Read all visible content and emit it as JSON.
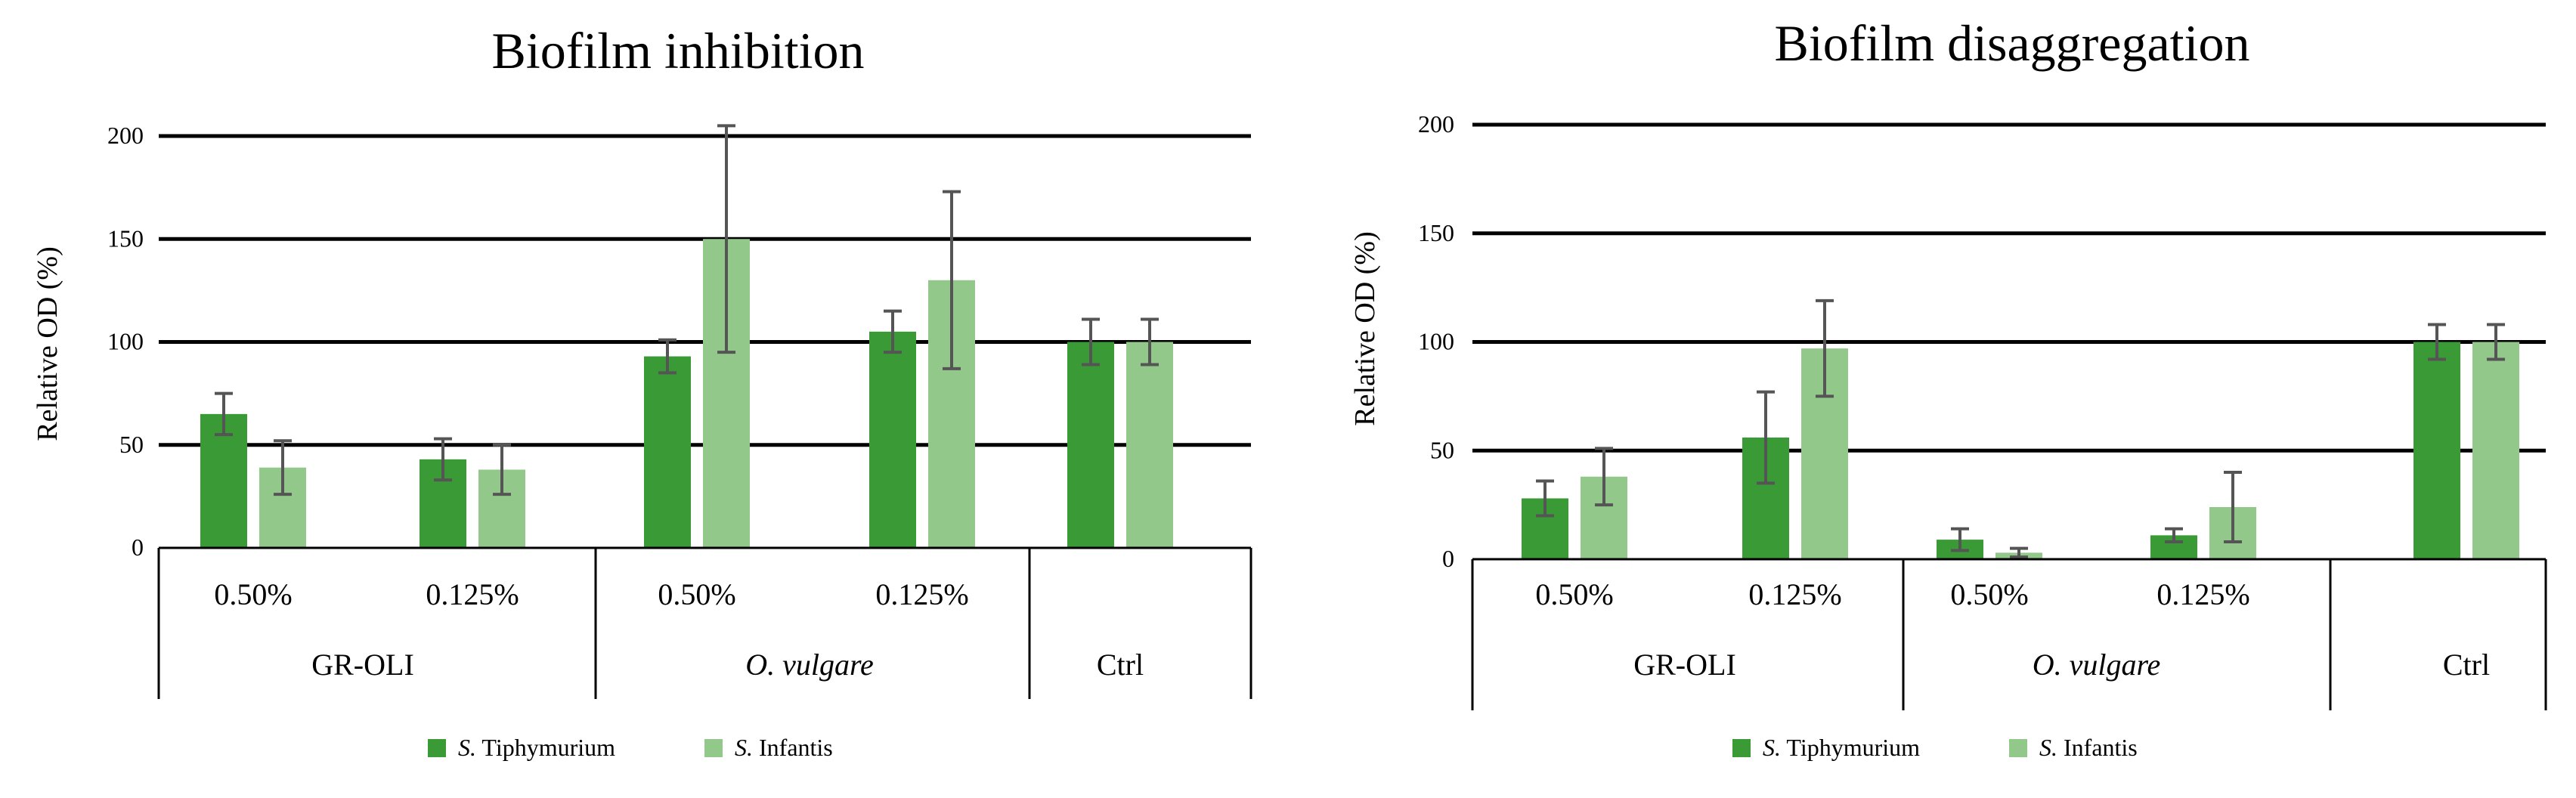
{
  "colors": {
    "dark_green": "#3a9a36",
    "light_green": "#92c98a",
    "error_bar": "#555555"
  },
  "legend": [
    {
      "italic": "S.",
      "rest": " Tiphymurium"
    },
    {
      "italic": "S.",
      "rest": " Infantis"
    }
  ],
  "chart_data": [
    {
      "type": "bar",
      "title": "Biofilm inhibition",
      "xlabel": "",
      "ylabel": "Relative OD (%)",
      "ylim": [
        0,
        200
      ],
      "yticks": [
        "0",
        "50",
        "100",
        "150",
        "200"
      ],
      "categories": [
        "0.50%",
        "0.125%",
        "0.50%",
        "0.125%",
        ""
      ],
      "groups": [
        {
          "label": "GR-OLI",
          "italic": false,
          "span": [
            0,
            1
          ]
        },
        {
          "label": "O. vulgare",
          "italic": true,
          "span": [
            2,
            3
          ]
        },
        {
          "label": "Ctrl",
          "italic": false,
          "span": [
            4,
            4
          ]
        }
      ],
      "series": [
        {
          "name": "S. Tiphymurium",
          "values": [
            65,
            43,
            93,
            105,
            100
          ],
          "errors": [
            10,
            10,
            8,
            10,
            11
          ]
        },
        {
          "name": "S. Infantis",
          "values": [
            39,
            38,
            150,
            130,
            100
          ],
          "errors": [
            13,
            12,
            55,
            43,
            11
          ]
        }
      ]
    },
    {
      "type": "bar",
      "title": "Biofilm disaggregation",
      "xlabel": "",
      "ylabel": "Relative OD (%)",
      "ylim": [
        0,
        200
      ],
      "yticks": [
        "0",
        "50",
        "100",
        "150",
        "200"
      ],
      "categories": [
        "0.50%",
        "0.125%",
        "0.50%",
        "0.125%",
        ""
      ],
      "groups": [
        {
          "label": "GR-OLI",
          "italic": false,
          "span": [
            0,
            1
          ]
        },
        {
          "label": "O. vulgare",
          "italic": true,
          "span": [
            2,
            3
          ]
        },
        {
          "label": "Ctrl",
          "italic": false,
          "span": [
            4,
            4
          ]
        }
      ],
      "series": [
        {
          "name": "S. Tiphymurium",
          "values": [
            28,
            56,
            9,
            11,
            100
          ],
          "errors": [
            8,
            21,
            5,
            3,
            8
          ]
        },
        {
          "name": "S. Infantis",
          "values": [
            38,
            97,
            3,
            24,
            100
          ],
          "errors": [
            13,
            22,
            2,
            16,
            8
          ]
        }
      ]
    }
  ]
}
